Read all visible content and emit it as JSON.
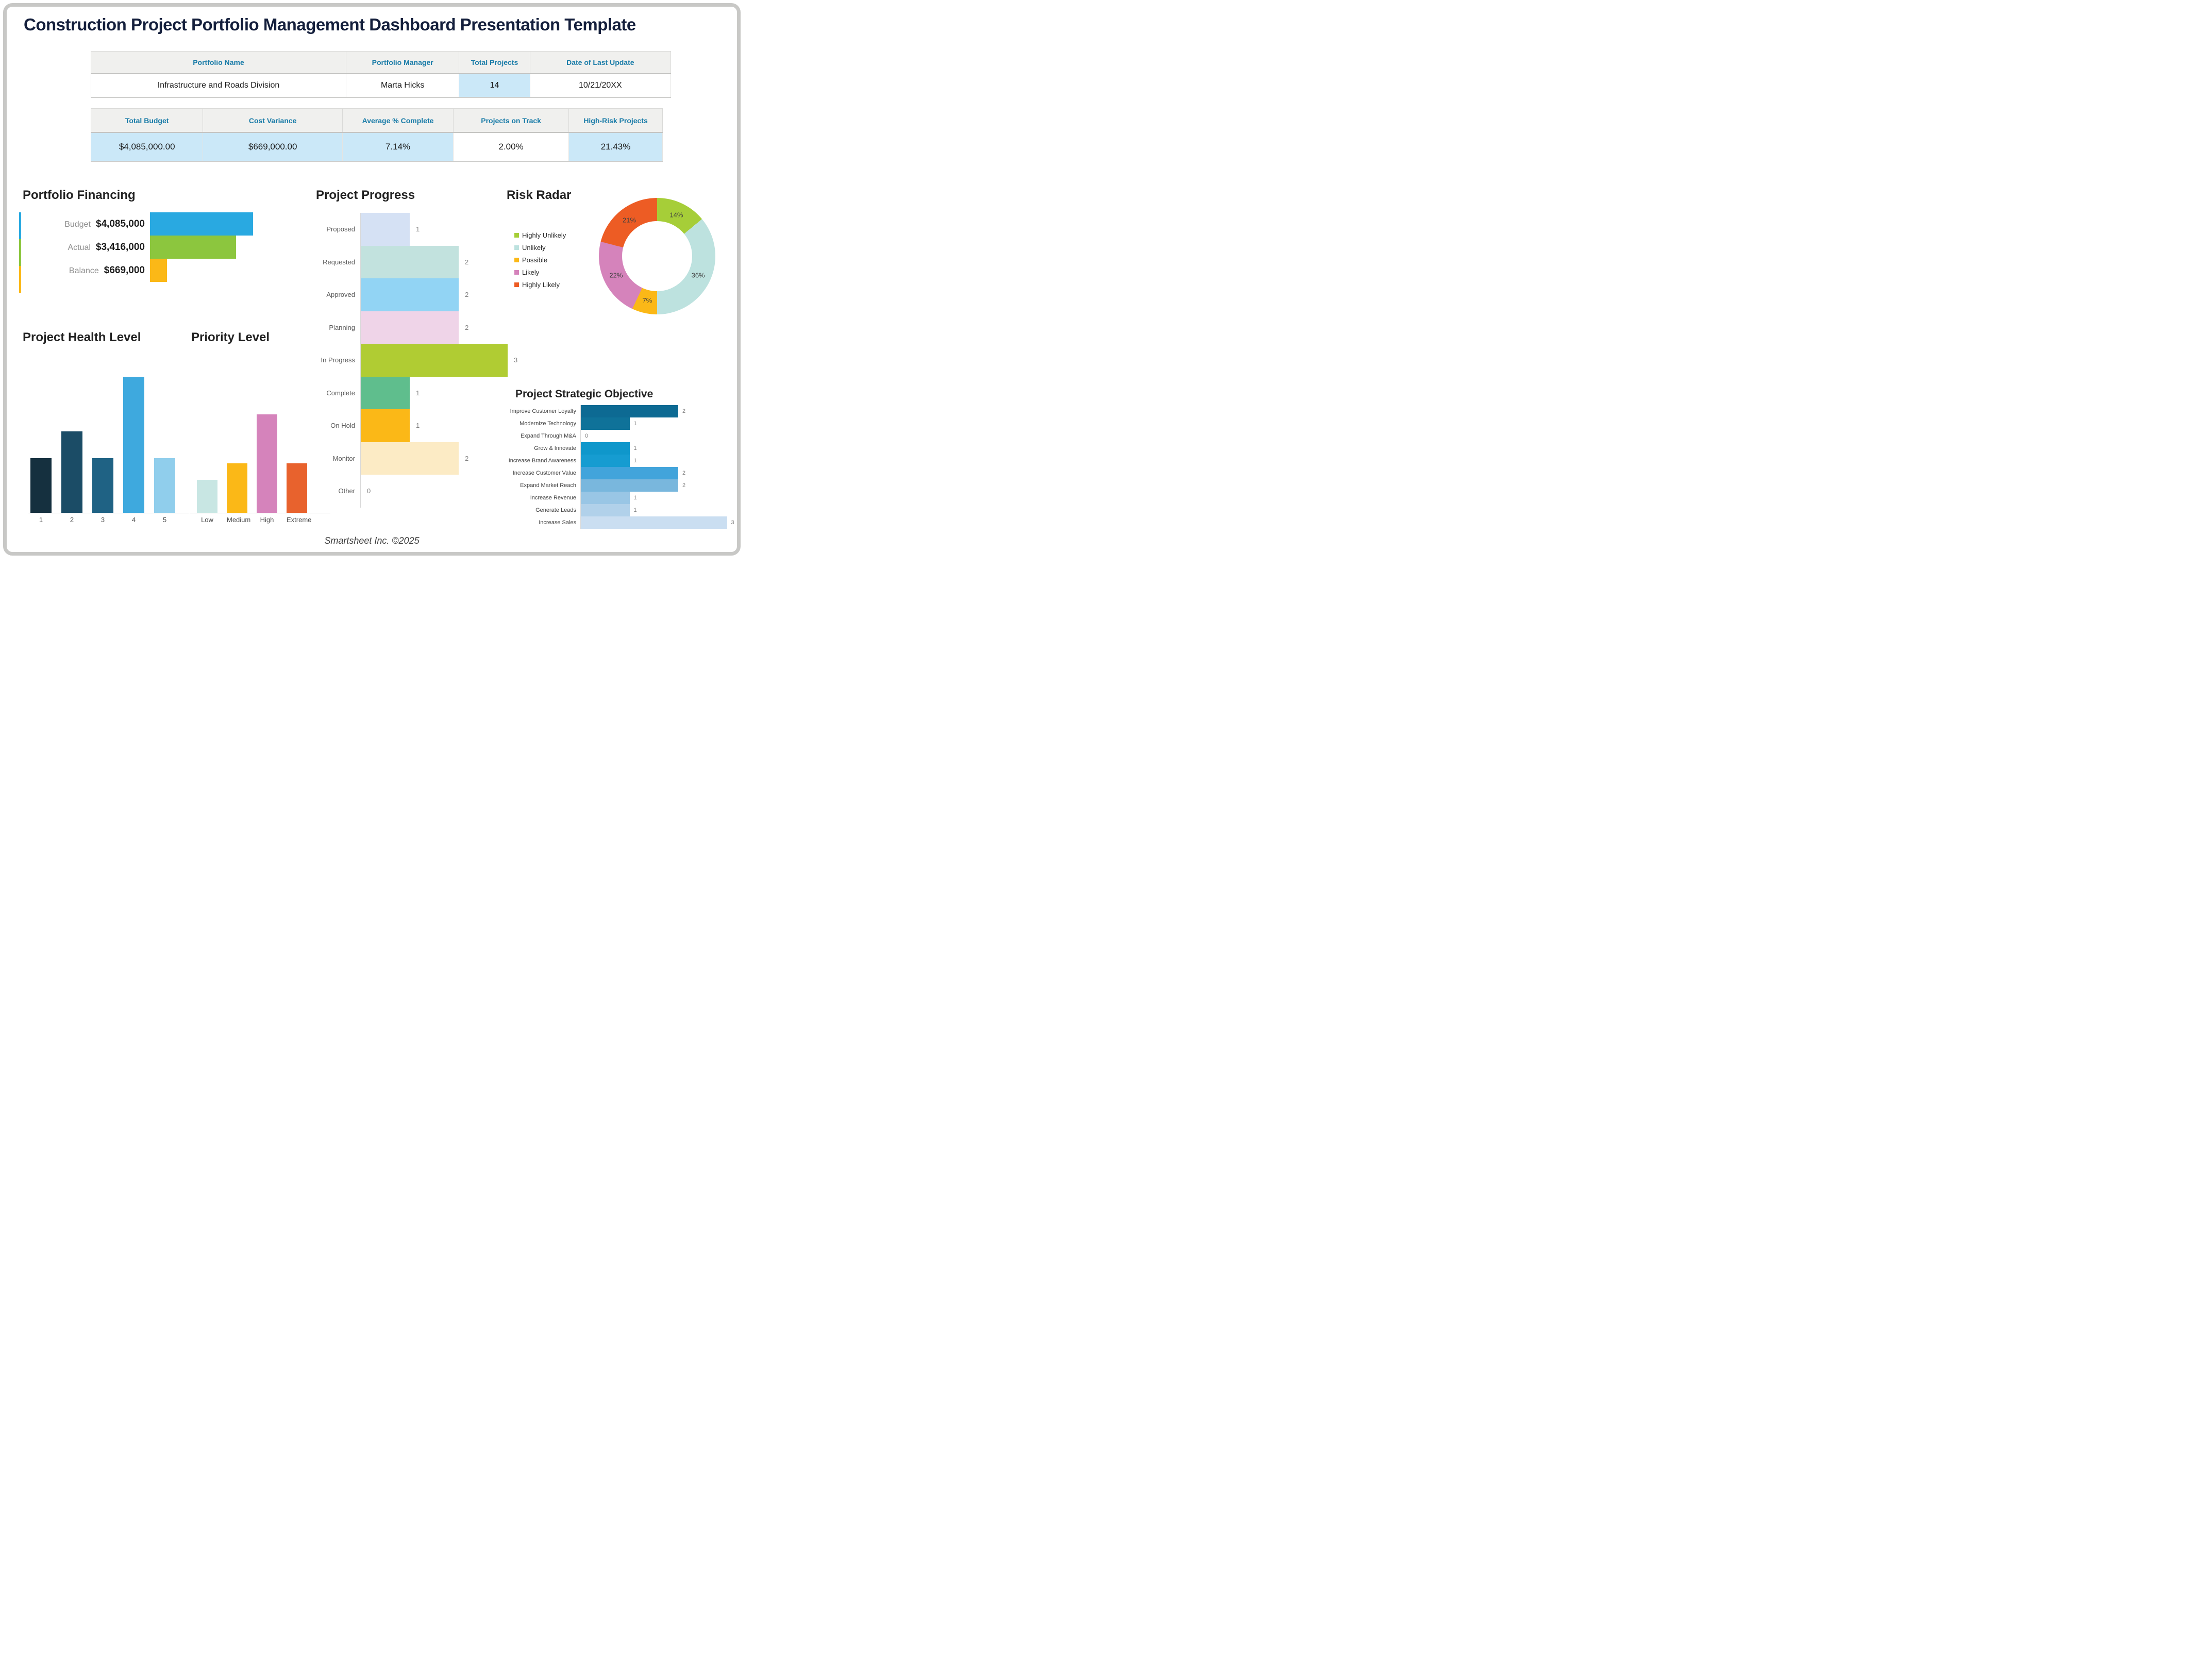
{
  "page": {
    "title": "Construction Project Portfolio Management Dashboard Presentation Template",
    "footer": "Smartsheet Inc. ©2025"
  },
  "colors": {
    "title_navy": "#141F3C",
    "accent_blue": "#1A7CA8",
    "highlight_blue": "#CBE8F8",
    "page_border": "#C8C8C6"
  },
  "portfolio_table": {
    "headers": [
      "Portfolio Name",
      "Portfolio Manager",
      "Total Projects",
      "Date of Last Update"
    ],
    "values": [
      "Infrastructure and Roads Division",
      "Marta Hicks",
      "14",
      "10/21/20XX"
    ]
  },
  "metrics_table": {
    "headers": [
      "Total Budget",
      "Cost Variance",
      "Average % Complete",
      "Projects on Track",
      "High-Risk Projects"
    ],
    "values": [
      "$4,085,000.00",
      "$669,000.00",
      "7.14%",
      "2.00%",
      "21.43%"
    ]
  },
  "chart_data": [
    {
      "id": "portfolio_financing",
      "type": "bar",
      "orientation": "horizontal",
      "title": "Portfolio Financing",
      "categories": [
        "Budget",
        "Actual",
        "Balance"
      ],
      "values": [
        4085000,
        3416000,
        669000
      ],
      "display_values": [
        "$4,085,000",
        "$3,416,000",
        "$669,000"
      ],
      "colors": [
        "#29A9E1",
        "#8CC63E",
        "#FBB817"
      ],
      "xlim": [
        0,
        4085000
      ],
      "grid": false
    },
    {
      "id": "project_progress",
      "type": "bar",
      "orientation": "horizontal",
      "title": "Project Progress",
      "categories": [
        "Proposed",
        "Requested",
        "Approved",
        "Planning",
        "In Progress",
        "Complete",
        "On Hold",
        "Monitor",
        "Other"
      ],
      "values": [
        1,
        2,
        2,
        2,
        3,
        1,
        1,
        2,
        0
      ],
      "colors": [
        "#D5E1F4",
        "#C2E2DE",
        "#92D4F4",
        "#EFD4E8",
        "#B0CC33",
        "#5FBE8D",
        "#FBB817",
        "#FCEBC5",
        "#FFFFFF"
      ],
      "xlim": [
        0,
        3
      ],
      "grid": false,
      "value_labels": true
    },
    {
      "id": "risk_radar",
      "type": "pie",
      "subtype": "donut",
      "title": "Risk Radar",
      "labels": [
        "Highly Unlikely",
        "Unlikely",
        "Possible",
        "Likely",
        "Highly Likely"
      ],
      "values": [
        14,
        36,
        7,
        22,
        21
      ],
      "display_values": [
        "14%",
        "36%",
        "7%",
        "22%",
        "21%"
      ],
      "colors": [
        "#A6CE38",
        "#BDE2DF",
        "#FBB817",
        "#D583BB",
        "#ED5C24"
      ],
      "legend_position": "left",
      "start_angle_deg": 0,
      "direction": "clockwise"
    },
    {
      "id": "project_health",
      "type": "bar",
      "orientation": "vertical",
      "title": "Project Health Level",
      "categories": [
        "1",
        "2",
        "3",
        "4",
        "5"
      ],
      "values": [
        2,
        3,
        2,
        5,
        2
      ],
      "colors": [
        "#15303F",
        "#1B4C66",
        "#1F6284",
        "#3EA9DE",
        "#90CEEC"
      ],
      "ylim": [
        0,
        5
      ],
      "grid": false
    },
    {
      "id": "priority_level",
      "type": "bar",
      "orientation": "vertical",
      "title": "Priority Level",
      "categories": [
        "Low",
        "Medium",
        "High",
        "Extreme"
      ],
      "values": [
        2,
        3,
        6,
        3
      ],
      "colors": [
        "#C8E6E3",
        "#FBB817",
        "#D583BB",
        "#E8622D"
      ],
      "ylim": [
        0,
        6
      ],
      "grid": false
    },
    {
      "id": "strategic_objective",
      "type": "bar",
      "orientation": "horizontal",
      "title": "Project Strategic Objective",
      "categories": [
        "Improve Customer Loyalty",
        "Modernize Technology",
        "Expand Through M&A",
        "Grow & Innovate",
        "Increase Brand Awareness",
        "Increase Customer Value",
        "Expand Market Reach",
        "Increase Revenue",
        "Generate Leads",
        "Increase Sales"
      ],
      "values": [
        2,
        1,
        0,
        1,
        1,
        2,
        2,
        1,
        1,
        3
      ],
      "colors": [
        "#0D6A93",
        "#0F7299",
        "#0E86B3",
        "#0F97CB",
        "#169CD1",
        "#42A4DB",
        "#79B7DD",
        "#99C6E5",
        "#B1D1EA",
        "#CADEF1"
      ],
      "xlim": [
        0,
        3
      ],
      "grid": false,
      "value_labels": true
    }
  ]
}
